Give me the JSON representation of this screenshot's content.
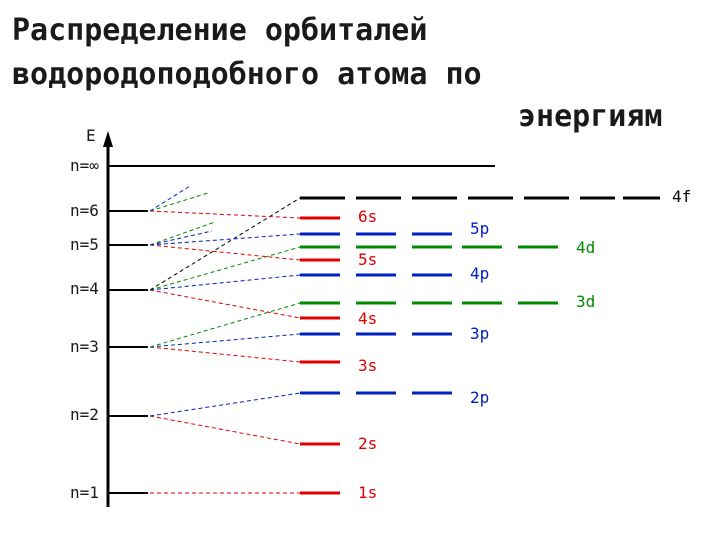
{
  "title": {
    "line1": "Распределение орбиталей",
    "line2": "водородоподобного атома по",
    "line3": "энергиям"
  },
  "axis_label": "E",
  "levels": [
    {
      "label": "n=∞"
    },
    {
      "label": "n=6"
    },
    {
      "label": "n=5"
    },
    {
      "label": "n=4"
    },
    {
      "label": "n=3"
    },
    {
      "label": "n=2"
    },
    {
      "label": "n=1"
    }
  ],
  "orbitals": [
    {
      "label": "1s",
      "color": "#e00000"
    },
    {
      "label": "2s",
      "color": "#e00000"
    },
    {
      "label": "2p",
      "color": "#0020c0"
    },
    {
      "label": "3s",
      "color": "#e00000"
    },
    {
      "label": "3p",
      "color": "#0020c0"
    },
    {
      "label": "4s",
      "color": "#e00000"
    },
    {
      "label": "3d",
      "color": "#008a00"
    },
    {
      "label": "4p",
      "color": "#0020c0"
    },
    {
      "label": "5s",
      "color": "#e00000"
    },
    {
      "label": "4d",
      "color": "#008a00"
    },
    {
      "label": "5p",
      "color": "#0020c0"
    },
    {
      "label": "6s",
      "color": "#e00000"
    },
    {
      "label": "4f",
      "color": "#000000"
    }
  ],
  "colors": {
    "s": "#e00000",
    "p": "#0020c0",
    "d": "#008a00",
    "f": "#000000",
    "axis": "#000000",
    "text": "#1a1a1a"
  }
}
